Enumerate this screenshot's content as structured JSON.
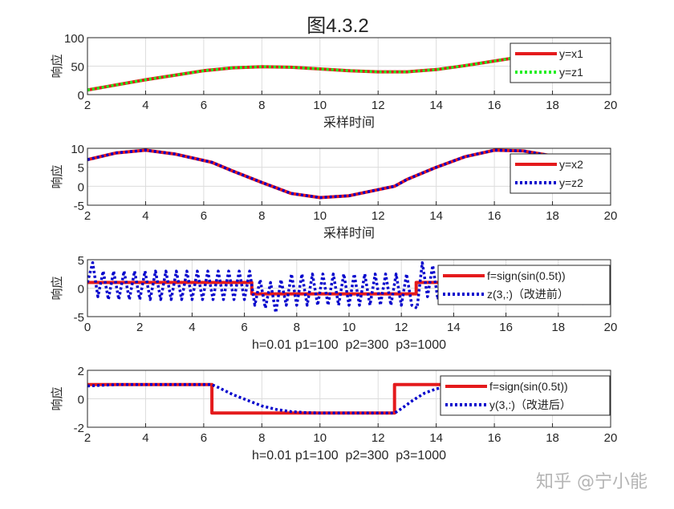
{
  "title": "图4.3.2",
  "watermark": "知乎 @宁小能",
  "colors": {
    "red": "#e41a1c",
    "green": "#22ee22",
    "blue": "#0000cc",
    "grid": "#dcdcdc"
  },
  "chart_data": [
    {
      "type": "line",
      "xlabel": "采样时间",
      "ylabel": "响应",
      "xlim": [
        2,
        20
      ],
      "ylim": [
        0,
        100
      ],
      "xticks": [
        2,
        4,
        6,
        8,
        10,
        12,
        14,
        16,
        18,
        20
      ],
      "yticks": [
        0,
        50,
        100
      ],
      "grid": true,
      "legend_placement": "top-right",
      "series": [
        {
          "name": "y=x1",
          "style": "solid",
          "color": "#e41a1c",
          "x": [
            2,
            3,
            4,
            5,
            6,
            7,
            8,
            9,
            10,
            11,
            12,
            13,
            14,
            15,
            16,
            17,
            18,
            19,
            19.5,
            20
          ],
          "y": [
            8,
            17,
            26,
            34,
            42,
            47,
            49,
            48,
            45,
            42,
            40,
            40,
            44,
            51,
            59,
            67,
            75,
            82,
            88,
            88
          ]
        },
        {
          "name": "y=z1",
          "style": "dotted",
          "color": "#22ee22",
          "x": [
            2,
            3,
            4,
            5,
            6,
            7,
            8,
            9,
            10,
            11,
            12,
            13,
            14,
            15,
            16,
            17,
            18,
            19,
            19.5,
            20
          ],
          "y": [
            8,
            17,
            26,
            34,
            42,
            47,
            49,
            48,
            45,
            42,
            40,
            40,
            44,
            51,
            59,
            67,
            75,
            82,
            88,
            88
          ]
        }
      ]
    },
    {
      "type": "line",
      "xlabel": "采样时间",
      "ylabel": "响应",
      "xlim": [
        2,
        20
      ],
      "ylim": [
        -5,
        10
      ],
      "xticks": [
        2,
        4,
        6,
        8,
        10,
        12,
        14,
        16,
        18,
        20
      ],
      "yticks": [
        -5,
        0,
        5,
        10
      ],
      "grid": true,
      "legend_placement": "top-right",
      "series": [
        {
          "name": "y=x2",
          "style": "solid",
          "color": "#e41a1c",
          "x": [
            2,
            3,
            4,
            5,
            6.28,
            7,
            8,
            9,
            10,
            11,
            12.57,
            13,
            14,
            15,
            16,
            17,
            18,
            19,
            20
          ],
          "y": [
            7,
            8.8,
            9.5,
            8.5,
            6.3,
            4,
            1,
            -1.9,
            -3,
            -2.5,
            0,
            1.8,
            5,
            7.8,
            9.5,
            9.3,
            8,
            6,
            2
          ]
        },
        {
          "name": "y=z2",
          "style": "dotted",
          "color": "#0000cc",
          "x": [
            2,
            3,
            4,
            5,
            6.28,
            7,
            8,
            9,
            10,
            11,
            12.57,
            13,
            14,
            15,
            16,
            17,
            18,
            19,
            20
          ],
          "y": [
            7,
            8.8,
            9.5,
            8.5,
            6.3,
            4,
            1,
            -1.9,
            -3,
            -2.5,
            0,
            1.8,
            5,
            7.8,
            9.5,
            9.3,
            8,
            6,
            2
          ]
        }
      ]
    },
    {
      "type": "line",
      "xlabel": "h=0.01 p1=100  p2=300  p3=1000",
      "ylabel": "响应",
      "xlim": [
        0,
        20
      ],
      "ylim": [
        -5,
        5
      ],
      "xticks": [
        0,
        2,
        4,
        6,
        8,
        10,
        12,
        14,
        16,
        18,
        20
      ],
      "yticks": [
        -5,
        0,
        5
      ],
      "grid": true,
      "legend_placement": "top-right",
      "series": [
        {
          "name": "f=sign(sin(0.5t))",
          "style": "solid",
          "color": "#e41a1c",
          "x": [
            0,
            6.283,
            6.283,
            12.566,
            12.566,
            18.85,
            18.85,
            20
          ],
          "y": [
            1,
            1,
            -1,
            -1,
            1,
            1,
            -1,
            -1
          ]
        },
        {
          "name": "z(3,:)（改进前）",
          "style": "dotted",
          "color": "#0000cc",
          "x_step": 0.2,
          "y": [
            1,
            4.5,
            -1.5,
            3,
            -2,
            3,
            -2,
            3,
            -2,
            3,
            -2,
            3,
            -2,
            3,
            -2,
            3,
            -2,
            3,
            -2,
            3,
            -2,
            3,
            -2,
            3,
            -2,
            3,
            -2,
            3,
            -2,
            3,
            -2,
            3,
            -3,
            1.5,
            -3.5,
            1,
            -4.3,
            1.5,
            -3,
            2.5,
            -3,
            2.5,
            -3,
            2.5,
            -3,
            2.5,
            -3,
            2.5,
            -3,
            2.5,
            -3,
            2.5,
            -3,
            2.5,
            -3,
            2.5,
            -3,
            2.5,
            -3,
            2.5,
            -3,
            2.5,
            -3,
            -3.5,
            4.5,
            -1.5,
            4,
            -2,
            3,
            -2,
            3,
            -2,
            3,
            -2,
            3,
            -2,
            3,
            -2,
            3,
            -2,
            3,
            -2,
            3,
            -2,
            3,
            -2,
            3,
            -2,
            3,
            -2,
            3,
            -2,
            3,
            -2,
            3,
            -3,
            2,
            -3,
            2.5,
            -3,
            -1
          ]
        }
      ]
    },
    {
      "type": "line",
      "xlabel": "h=0.01 p1=100  p2=300  p3=1000",
      "ylabel": "响应",
      "xlim": [
        2,
        20
      ],
      "ylim": [
        -2,
        2
      ],
      "xticks": [
        2,
        4,
        6,
        8,
        10,
        12,
        14,
        16,
        18,
        20
      ],
      "yticks": [
        -2,
        0,
        2
      ],
      "grid": true,
      "legend_placement": "top-right",
      "series": [
        {
          "name": "f=sign(sin(0.5t))",
          "style": "solid",
          "color": "#e41a1c",
          "x": [
            2,
            6.283,
            6.283,
            12.566,
            12.566,
            18.85,
            18.85,
            19.95,
            19.95
          ],
          "y": [
            1,
            1,
            -1,
            -1,
            1,
            1,
            -1,
            -1,
            0
          ]
        },
        {
          "name": "y(3,:)（改进后）",
          "style": "dotted",
          "color": "#0000cc",
          "x": [
            2,
            3,
            6.28,
            6.5,
            7,
            7.5,
            8,
            8.5,
            9,
            9.5,
            10,
            12.57,
            12.8,
            13.2,
            13.6,
            14,
            14.5,
            15,
            18.85,
            19.2,
            19.6,
            20
          ],
          "y": [
            0.9,
            1,
            1,
            0.8,
            0.3,
            -0.1,
            -0.5,
            -0.75,
            -0.9,
            -0.97,
            -1,
            -1,
            -0.7,
            -0.1,
            0.4,
            0.7,
            0.9,
            1,
            1,
            0.7,
            0.3,
            -0.3
          ]
        }
      ]
    }
  ]
}
